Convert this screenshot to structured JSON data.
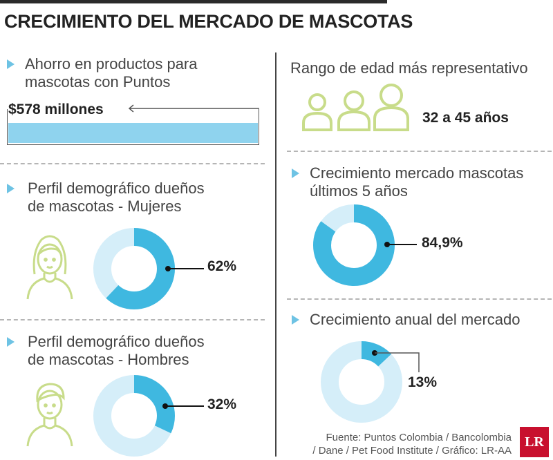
{
  "title": "CRECIMIENTO DEL MERCADO DE MASCOTAS",
  "colors": {
    "dark": "#3fb8e0",
    "light": "#d5eef9",
    "bar": "#8fd3ee",
    "icon": "#c8dc8a",
    "arrow": "#6ec3e4"
  },
  "savings": {
    "title_lines": [
      "Ahorro en productos para",
      "mascotas con Puntos"
    ],
    "value_label": "$578 millones"
  },
  "age": {
    "title": "Rango de edad más representativo",
    "value_label": "32 a 45 años",
    "icon": "people-icon"
  },
  "women": {
    "title_lines": [
      "Perfil demográfico dueños",
      "de mascotas - Mujeres"
    ],
    "icon": "woman-icon"
  },
  "men": {
    "title_lines": [
      "Perfil demográfico dueños",
      "de mascotas - Hombres"
    ],
    "icon": "man-icon"
  },
  "growth5": {
    "title_lines": [
      "Crecimiento mercado mascotas",
      "últimos 5 años"
    ]
  },
  "annual": {
    "title": "Crecimiento anual del mercado"
  },
  "source_lines": [
    "Fuente: Puntos Colombia / Bancolombia",
    "/ Dane / Pet Food Institute / Gráfico: LR-AA"
  ],
  "logo_text": "LR",
  "chart_data": [
    {
      "type": "bar",
      "categories": [
        "Ahorro en productos para mascotas con Puntos"
      ],
      "values": [
        578
      ],
      "value_labels": [
        "$578 millones"
      ]
    },
    {
      "type": "pie",
      "categories": [
        "Mujeres"
      ],
      "values": [
        62
      ],
      "value_labels": [
        "62%"
      ]
    },
    {
      "type": "pie",
      "categories": [
        "Hombres"
      ],
      "values": [
        32
      ],
      "value_labels": [
        "32%"
      ]
    },
    {
      "type": "pie",
      "categories": [
        "Crecimiento mercado mascotas últimos 5 años"
      ],
      "values": [
        84.9
      ],
      "value_labels": [
        "84,9%"
      ]
    },
    {
      "type": "pie",
      "categories": [
        "Crecimiento anual del mercado"
      ],
      "values": [
        13
      ],
      "value_labels": [
        "13%"
      ]
    }
  ]
}
